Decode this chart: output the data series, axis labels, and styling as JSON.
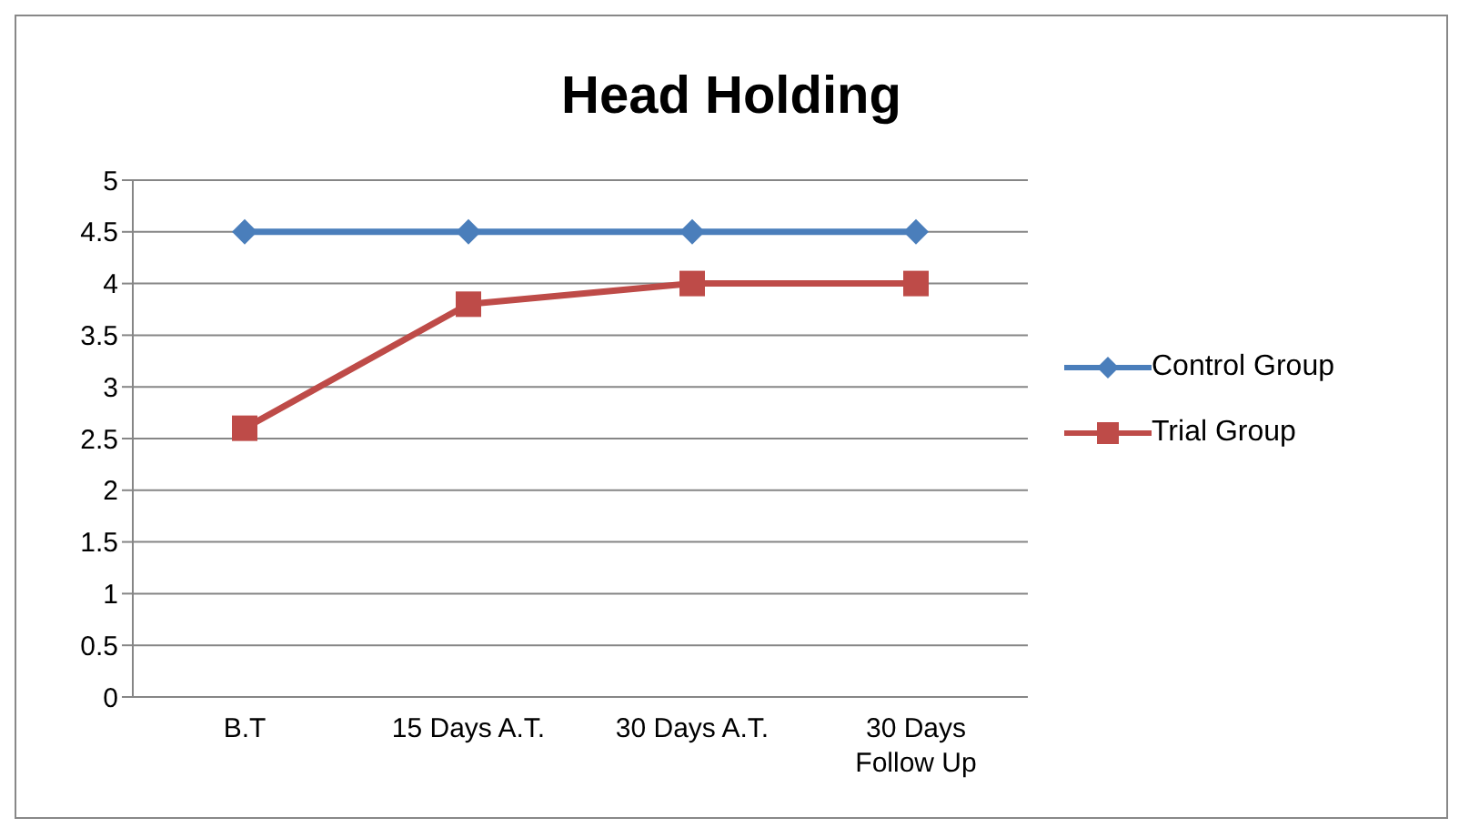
{
  "chart_data": {
    "type": "line",
    "title": "Head Holding",
    "categories": [
      "B.T",
      "15 Days A.T.",
      "30 Days A.T.",
      "30 Days Follow Up"
    ],
    "series": [
      {
        "name": "Control Group",
        "color": "#4a7ebb",
        "marker": "diamond",
        "values": [
          4.5,
          4.5,
          4.5,
          4.5
        ]
      },
      {
        "name": "Trial Group",
        "color": "#be4b48",
        "marker": "square",
        "values": [
          2.6,
          3.8,
          4.0,
          4.0
        ]
      }
    ],
    "ylim": [
      0,
      5
    ],
    "yticks": [
      0,
      0.5,
      1,
      1.5,
      2,
      2.5,
      3,
      3.5,
      4,
      4.5,
      5
    ],
    "grid": "y",
    "legend": "right"
  }
}
